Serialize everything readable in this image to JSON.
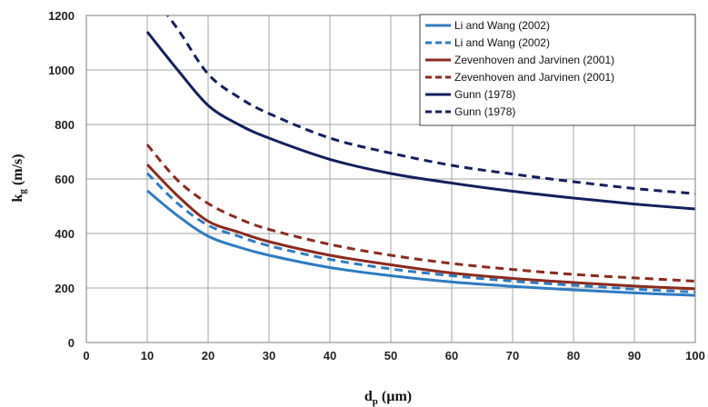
{
  "chart_data": {
    "type": "line",
    "xlabel": {
      "main": "d",
      "sub": "p",
      "unit": " (µm)"
    },
    "ylabel": {
      "main": "k",
      "sub": "g",
      "unit": " (m/s)"
    },
    "xlim": [
      0,
      100
    ],
    "ylim": [
      0,
      1200
    ],
    "xticks": [
      "0",
      "10",
      "20",
      "30",
      "40",
      "50",
      "60",
      "70",
      "80",
      "90",
      "100"
    ],
    "yticks": [
      "0",
      "200",
      "400",
      "600",
      "800",
      "1000",
      "1200"
    ],
    "grid": true,
    "legend_position": "top-right",
    "x": [
      10,
      15,
      20,
      25,
      30,
      40,
      50,
      60,
      70,
      80,
      90,
      100
    ],
    "series": [
      {
        "name": "Li and Wang (2002)",
        "color": "#2e7bc4",
        "dash": "solid",
        "values": [
          557,
          465,
          390,
          350,
          320,
          275,
          245,
          222,
          206,
          193,
          182,
          173
        ]
      },
      {
        "name": "Li and Wang (2002)",
        "color": "#2e7bc4",
        "dash": "dashed",
        "values": [
          621,
          510,
          430,
          390,
          355,
          305,
          270,
          245,
          225,
          210,
          196,
          185
        ]
      },
      {
        "name": "Zevenhoven and Jarvinen (2001)",
        "color": "#8b2b1e",
        "dash": "solid",
        "values": [
          653,
          538,
          445,
          405,
          370,
          320,
          285,
          255,
          235,
          220,
          207,
          197
        ]
      },
      {
        "name": "Zevenhoven and Jarvinen (2001)",
        "color": "#8b2b1e",
        "dash": "dashed",
        "values": [
          726,
          595,
          510,
          455,
          415,
          360,
          320,
          290,
          268,
          250,
          237,
          225
        ]
      },
      {
        "name": "Gunn (1978)",
        "color": "#13205e",
        "dash": "solid",
        "values": [
          1140,
          1000,
          870,
          800,
          750,
          672,
          620,
          585,
          555,
          530,
          508,
          490
        ]
      },
      {
        "name": "Gunn (1978)",
        "color": "#13205e",
        "dash": "dashed",
        "values": [
          1300,
          1150,
          985,
          900,
          840,
          750,
          695,
          650,
          618,
          590,
          565,
          546
        ]
      }
    ]
  }
}
